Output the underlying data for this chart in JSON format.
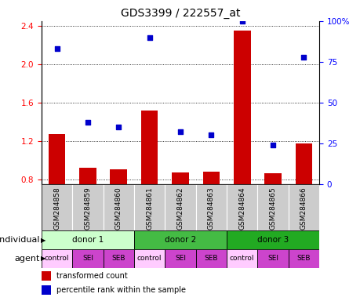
{
  "title": "GDS3399 / 222557_at",
  "samples": [
    "GSM284858",
    "GSM284859",
    "GSM284860",
    "GSM284861",
    "GSM284862",
    "GSM284863",
    "GSM284864",
    "GSM284865",
    "GSM284866"
  ],
  "bar_values": [
    1.27,
    0.92,
    0.9,
    1.52,
    0.87,
    0.88,
    2.35,
    0.86,
    1.17
  ],
  "percentile_values": [
    83,
    38,
    35,
    90,
    32,
    30,
    100,
    24,
    78
  ],
  "ylim_left": [
    0.75,
    2.45
  ],
  "ylim_right": [
    0,
    100
  ],
  "yticks_left": [
    0.8,
    1.2,
    1.6,
    2.0,
    2.4
  ],
  "yticks_right": [
    0,
    25,
    50,
    75,
    100
  ],
  "ytick_labels_right": [
    "0",
    "25",
    "50",
    "75",
    "100%"
  ],
  "bar_color": "#cc0000",
  "scatter_color": "#0000cc",
  "donors": [
    {
      "label": "donor 1",
      "start": 0,
      "end": 3,
      "color": "#ccffcc"
    },
    {
      "label": "donor 2",
      "start": 3,
      "end": 6,
      "color": "#44bb44"
    },
    {
      "label": "donor 3",
      "start": 6,
      "end": 9,
      "color": "#22aa22"
    }
  ],
  "agents": [
    {
      "label": "control",
      "color": "#ffccff"
    },
    {
      "label": "SEI",
      "color": "#cc44cc"
    },
    {
      "label": "SEB",
      "color": "#cc44cc"
    },
    {
      "label": "control",
      "color": "#ffccff"
    },
    {
      "label": "SEI",
      "color": "#cc44cc"
    },
    {
      "label": "SEB",
      "color": "#cc44cc"
    },
    {
      "label": "control",
      "color": "#ffccff"
    },
    {
      "label": "SEI",
      "color": "#cc44cc"
    },
    {
      "label": "SEB",
      "color": "#cc44cc"
    }
  ],
  "individual_label": "individual",
  "agent_label": "agent",
  "legend_bar_label": "transformed count",
  "legend_scatter_label": "percentile rank within the sample",
  "tick_bg_color": "#cccccc",
  "title_fontsize": 10,
  "axis_fontsize": 7.5,
  "label_fontsize": 8,
  "annotation_fontsize": 7.5,
  "sample_fontsize": 6.5
}
